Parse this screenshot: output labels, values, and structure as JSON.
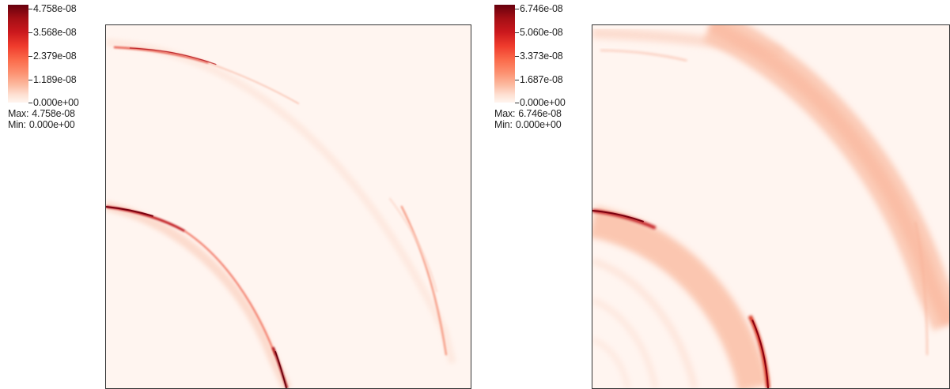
{
  "panels": [
    {
      "colorbar": {
        "ticks": [
          "4.758e-08",
          "3.568e-08",
          "2.379e-08",
          "1.189e-08",
          "0.000e+00"
        ],
        "max_label": "Max:",
        "max_value": "4.758e-08",
        "min_label": "Min:",
        "min_value": "0.000e+00"
      }
    },
    {
      "colorbar": {
        "ticks": [
          "6.746e-08",
          "5.060e-08",
          "3.373e-08",
          "1.687e-08",
          "0.000e+00"
        ],
        "max_label": "Max:",
        "max_value": "6.746e-08",
        "min_label": "Min:",
        "min_value": "0.000e+00"
      }
    }
  ],
  "colormap": {
    "high": "#67000d",
    "mid": "#ef3b2c",
    "low": "#fff5f0"
  }
}
